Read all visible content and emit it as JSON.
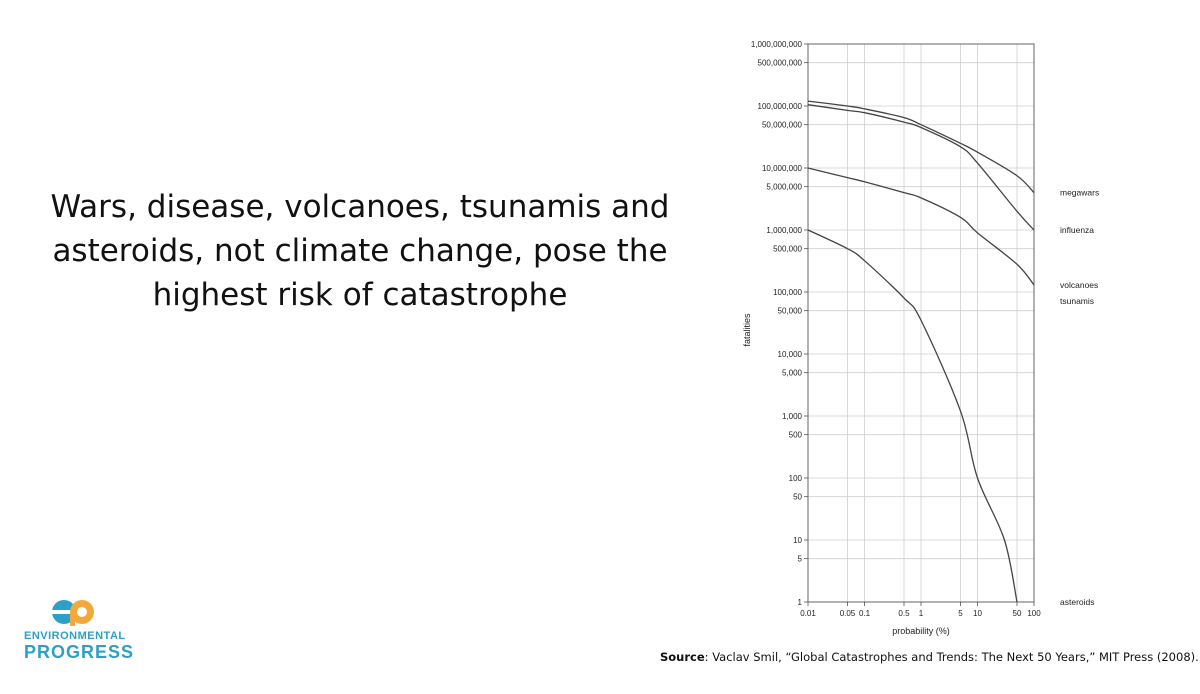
{
  "slide": {
    "headline": "Wars, disease, volcanoes, tsunamis and asteroids, not climate change, pose the highest risk of catastrophe",
    "source_label": "Source",
    "source_text": ": Vaclav Smil, “Global Catastrophes and Trends: The Next 50 Years,” MIT Press (2008)."
  },
  "logo": {
    "line1": "ENVIRONMENTAL",
    "line2": "PROGRESS",
    "colors": {
      "blue": "#2ca0c6",
      "orange": "#f3a83b"
    }
  },
  "chart_data": {
    "type": "line",
    "xlabel": "probability (%)",
    "ylabel": "fatalities",
    "x_scale": "log",
    "y_scale": "log",
    "xlim": [
      0.01,
      100
    ],
    "ylim": [
      1,
      1000000000
    ],
    "grid": true,
    "legend": "labels at right end of curves",
    "x_ticks": [
      {
        "v": 0.01,
        "label": "0.01"
      },
      {
        "v": 0.05,
        "label": "0.05"
      },
      {
        "v": 0.1,
        "label": "0.1"
      },
      {
        "v": 0.5,
        "label": "0.5"
      },
      {
        "v": 1,
        "label": "1"
      },
      {
        "v": 5,
        "label": "5"
      },
      {
        "v": 10,
        "label": "10"
      },
      {
        "v": 50,
        "label": "50"
      },
      {
        "v": 100,
        "label": "100"
      }
    ],
    "y_ticks": [
      {
        "v": 1000000000,
        "label": "1,000,000,000"
      },
      {
        "v": 500000000,
        "label": "500,000,000"
      },
      {
        "v": 100000000,
        "label": "100,000,000"
      },
      {
        "v": 50000000,
        "label": "50,000,000"
      },
      {
        "v": 10000000,
        "label": "10,000,000"
      },
      {
        "v": 5000000,
        "label": "5,000,000"
      },
      {
        "v": 1000000,
        "label": "1,000,000"
      },
      {
        "v": 500000,
        "label": "500,000"
      },
      {
        "v": 100000,
        "label": "100,000"
      },
      {
        "v": 50000,
        "label": "50,000"
      },
      {
        "v": 10000,
        "label": "10,000"
      },
      {
        "v": 5000,
        "label": "5,000"
      },
      {
        "v": 1000,
        "label": "1,000"
      },
      {
        "v": 500,
        "label": "500"
      },
      {
        "v": 100,
        "label": "100"
      },
      {
        "v": 50,
        "label": "50"
      },
      {
        "v": 10,
        "label": "10"
      },
      {
        "v": 5,
        "label": "5"
      },
      {
        "v": 1,
        "label": "1"
      }
    ],
    "series": [
      {
        "name": "megawars",
        "points": [
          [
            0.01,
            120000000
          ],
          [
            0.05,
            100000000
          ],
          [
            0.1,
            90000000
          ],
          [
            0.5,
            65000000
          ],
          [
            1,
            50000000
          ],
          [
            5,
            25000000
          ],
          [
            10,
            18000000
          ],
          [
            50,
            7500000
          ],
          [
            100,
            4000000
          ]
        ]
      },
      {
        "name": "influenza",
        "points": [
          [
            0.01,
            105000000
          ],
          [
            0.05,
            85000000
          ],
          [
            0.1,
            78000000
          ],
          [
            0.5,
            55000000
          ],
          [
            1,
            45000000
          ],
          [
            5,
            22000000
          ],
          [
            10,
            12000000
          ],
          [
            50,
            2000000
          ],
          [
            100,
            1000000
          ]
        ]
      },
      {
        "name": "volcanoes",
        "points": [
          [
            0.01,
            10000000
          ],
          [
            0.05,
            7000000
          ],
          [
            0.1,
            6000000
          ],
          [
            0.5,
            4000000
          ],
          [
            1,
            3300000
          ],
          [
            5,
            1600000
          ],
          [
            10,
            900000
          ],
          [
            50,
            280000
          ],
          [
            100,
            130000
          ]
        ]
      },
      {
        "name": "tsunamis",
        "points": []
      },
      {
        "name": "asteroids",
        "points": [
          [
            0.01,
            1000000
          ],
          [
            0.05,
            500000
          ],
          [
            0.1,
            320000
          ],
          [
            0.5,
            80000
          ],
          [
            1,
            35000
          ],
          [
            5,
            1200
          ],
          [
            10,
            100
          ],
          [
            30,
            10
          ],
          [
            50,
            1
          ]
        ]
      }
    ]
  }
}
